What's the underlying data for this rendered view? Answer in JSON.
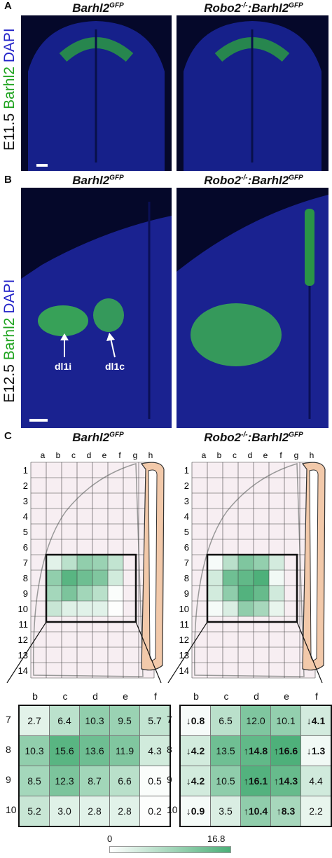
{
  "panelA": {
    "letter": "A",
    "left_title": "Barhl2",
    "left_title_sup": "GFP",
    "right_title_prefix": "Robo2",
    "right_title_sup1": "-/-",
    "right_title_mid": ":Barhl2",
    "right_title_sup2": "GFP",
    "vlabel_stage": "E11.5",
    "vlabel_green": "Barhl2",
    "vlabel_blue": "DAPI"
  },
  "panelB": {
    "letter": "B",
    "left_title": "Barhl2",
    "left_title_sup": "GFP",
    "right_title_prefix": "Robo2",
    "right_title_sup1": "-/-",
    "right_title_mid": ":Barhl2",
    "right_title_sup2": "GFP",
    "vlabel_stage": "E12.5",
    "vlabel_green": "Barhl2",
    "vlabel_blue": "DAPI",
    "arrow_left": "dl1i",
    "arrow_right": "dl1c"
  },
  "panelC": {
    "letter": "C",
    "left_title": "Barhl2",
    "left_title_sup": "GFP",
    "right_title_prefix": "Robo2",
    "right_title_sup1": "-/-",
    "right_title_mid": ":Barhl2",
    "right_title_sup2": "GFP",
    "grid_columns": [
      "a",
      "b",
      "c",
      "d",
      "e",
      "f",
      "g",
      "h"
    ],
    "grid_rows": [
      "1",
      "2",
      "3",
      "4",
      "5",
      "6",
      "7",
      "8",
      "9",
      "10",
      "11",
      "12",
      "13",
      "14"
    ],
    "heat_columns": [
      "b",
      "c",
      "d",
      "e",
      "f"
    ],
    "heat_rows": [
      "7",
      "8",
      "9",
      "10"
    ],
    "left_table": [
      [
        {
          "v": "2.7"
        },
        {
          "v": "6.4"
        },
        {
          "v": "10.3"
        },
        {
          "v": "9.5"
        },
        {
          "v": "5.7"
        }
      ],
      [
        {
          "v": "10.3"
        },
        {
          "v": "15.6"
        },
        {
          "v": "13.6"
        },
        {
          "v": "11.9"
        },
        {
          "v": "4.3"
        }
      ],
      [
        {
          "v": "8.5"
        },
        {
          "v": "12.3"
        },
        {
          "v": "8.7"
        },
        {
          "v": "6.6"
        },
        {
          "v": "0.5"
        }
      ],
      [
        {
          "v": "5.2"
        },
        {
          "v": "3.0"
        },
        {
          "v": "2.8"
        },
        {
          "v": "2.8"
        },
        {
          "v": "0.2"
        }
      ]
    ],
    "right_table": [
      [
        {
          "v": "↓0.8",
          "b": true
        },
        {
          "v": "6.5"
        },
        {
          "v": "12.0"
        },
        {
          "v": "10.1"
        },
        {
          "v": "↓4.1",
          "b": true
        }
      ],
      [
        {
          "v": "↓4.2",
          "b": true
        },
        {
          "v": "13.5"
        },
        {
          "v": "↑14.8",
          "b": true
        },
        {
          "v": "↑16.6",
          "b": true
        },
        {
          "v": "↓1.3",
          "b": true
        }
      ],
      [
        {
          "v": "↓4.2",
          "b": true
        },
        {
          "v": "10.5"
        },
        {
          "v": "↑16.1",
          "b": true
        },
        {
          "v": "↑14.3",
          "b": true
        },
        {
          "v": "4.4"
        }
      ],
      [
        {
          "v": "↓0.9",
          "b": true
        },
        {
          "v": "3.5"
        },
        {
          "v": "↑10.4",
          "b": true
        },
        {
          "v": "↑8.3",
          "b": true
        },
        {
          "v": "2.2"
        }
      ]
    ],
    "colorbar_min": "0",
    "colorbar_max": "16.8"
  },
  "colors": {
    "low": "#ffffff",
    "high": "#4caf78",
    "pink": "#f7eef2",
    "tan": "#f2c9aa"
  }
}
